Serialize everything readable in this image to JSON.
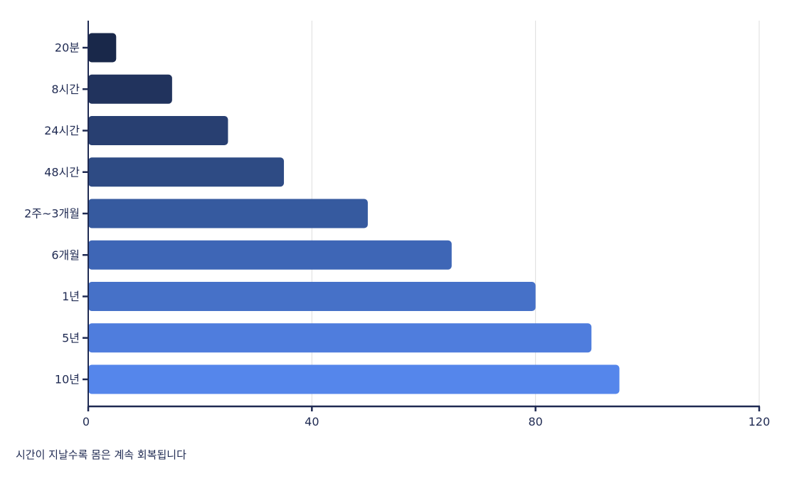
{
  "chart_data": {
    "type": "bar",
    "orientation": "horizontal",
    "categories": [
      "20분",
      "8시간",
      "24시간",
      "48시간",
      "2주~3개월",
      "6개월",
      "1년",
      "5년",
      "10년"
    ],
    "values": [
      5,
      15,
      25,
      35,
      50,
      65,
      80,
      90,
      95
    ],
    "xlim": [
      0,
      120
    ],
    "xticks": [
      "0",
      "40",
      "80",
      "120"
    ],
    "grid": "vertical",
    "legend": "none",
    "caption": "시간이 지날수록 몸은 계속 회복됩니다",
    "colors": [
      "#19284a",
      "#21335d",
      "#283f71",
      "#2e4b84",
      "#365a9f",
      "#3e66b6",
      "#4671c8",
      "#4f7ddd",
      "#5586eb"
    ],
    "axis_color": "#1f2a52",
    "grid_color": "#dcdcdc"
  }
}
